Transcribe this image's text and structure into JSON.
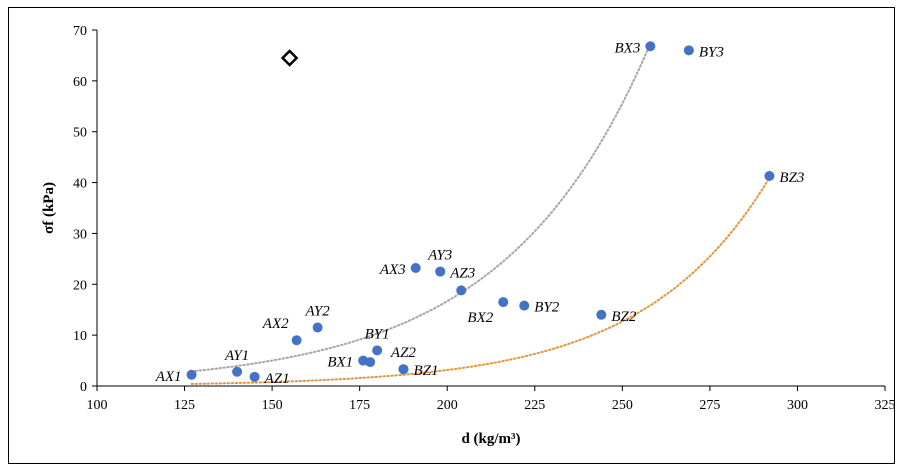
{
  "chart_data": {
    "type": "scatter",
    "title": "",
    "xlabel": "d (kg/m³)",
    "ylabel": "σf (kPa)",
    "xlim": [
      100,
      325
    ],
    "ylim": [
      0,
      70
    ],
    "xticks": [
      100,
      125,
      150,
      175,
      200,
      225,
      250,
      275,
      300,
      325
    ],
    "yticks": [
      0,
      10,
      20,
      30,
      40,
      50,
      60,
      70
    ],
    "grid": false,
    "marker_color": "#4472C4",
    "points": [
      {
        "label": "AX1",
        "x": 127,
        "y": 2.2,
        "anchor": "left"
      },
      {
        "label": "AY1",
        "x": 140,
        "y": 2.8,
        "anchor": "above"
      },
      {
        "label": "AZ1",
        "x": 145,
        "y": 1.8,
        "anchor": "right"
      },
      {
        "label": "AX2",
        "x": 157,
        "y": 9.0,
        "anchor": "above-left"
      },
      {
        "label": "AY2",
        "x": 163,
        "y": 11.5,
        "anchor": "above"
      },
      {
        "label": "BX1",
        "x": 176,
        "y": 5.0,
        "anchor": "left"
      },
      {
        "label": "",
        "x": 178,
        "y": 4.7,
        "anchor": "none"
      },
      {
        "label": "BY1",
        "x": 180,
        "y": 7.0,
        "anchor": "above"
      },
      {
        "label": "AZ2",
        "x": 187.5,
        "y": 3.3,
        "anchor": "above"
      },
      {
        "label": "BZ1",
        "x": 187.5,
        "y": 3.3,
        "anchor": "right"
      },
      {
        "label": "AX3",
        "x": 191,
        "y": 23.2,
        "anchor": "left"
      },
      {
        "label": "AY3",
        "x": 198,
        "y": 22.5,
        "anchor": "above"
      },
      {
        "label": "AZ3",
        "x": 198,
        "y": 22.5,
        "anchor": "right"
      },
      {
        "label": "",
        "x": 204,
        "y": 18.8,
        "anchor": "none"
      },
      {
        "label": "BX2",
        "x": 216,
        "y": 16.5,
        "anchor": "below-left"
      },
      {
        "label": "BY2",
        "x": 222,
        "y": 15.8,
        "anchor": "right"
      },
      {
        "label": "BZ2",
        "x": 244,
        "y": 14.0,
        "anchor": "right"
      },
      {
        "label": "BX3",
        "x": 258,
        "y": 66.8,
        "anchor": "left"
      },
      {
        "label": "BY3",
        "x": 269,
        "y": 66.0,
        "anchor": "right"
      },
      {
        "label": "BZ3",
        "x": 292,
        "y": 41.3,
        "anchor": "right"
      }
    ],
    "trendlines": [
      {
        "color": "#A6A6A6",
        "style": "dotted",
        "a": 0.1356,
        "b": 0.02406,
        "x_range": [
          127,
          258
        ]
      },
      {
        "color": "#E59440",
        "style": "dotted",
        "a": 0.01186,
        "b": 0.0279,
        "x_range": [
          127,
          292
        ]
      }
    ],
    "extra_markers": [
      {
        "shape": "diamond-open",
        "x": 155,
        "y": 64.5,
        "color": "#000000"
      }
    ]
  }
}
